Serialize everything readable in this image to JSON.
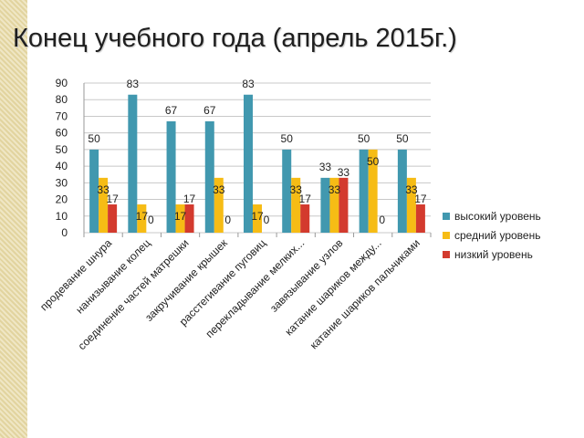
{
  "slide": {
    "title": "Конец учебного года (апрель 2015г.)"
  },
  "chart_data": {
    "type": "bar",
    "categories": [
      "продевание шнура",
      "нанизывание колец",
      "соединение частей матрешки",
      "закручивание крышек",
      "расстегивание пуговиц",
      "перекладывание мелких...",
      "завязывание узлов",
      "катание шариков между...",
      "катание шариков пальчиками"
    ],
    "series": [
      {
        "name": "высокий уровень",
        "color": "#4198af",
        "values": [
          50,
          83,
          67,
          67,
          83,
          50,
          33,
          50,
          50
        ]
      },
      {
        "name": "средний уровень",
        "color": "#f6bc15",
        "values": [
          33,
          17,
          17,
          33,
          17,
          33,
          33,
          50,
          33
        ]
      },
      {
        "name": "низкий уровень",
        "color": "#d33a2e",
        "values": [
          17,
          0,
          17,
          0,
          0,
          17,
          33,
          0,
          17
        ]
      }
    ],
    "ylim": [
      0,
      90
    ],
    "yticks": [
      "0",
      "10",
      "20",
      "30",
      "40",
      "50",
      "60",
      "70",
      "80",
      "90"
    ],
    "grid": true,
    "legend_position": "right"
  }
}
